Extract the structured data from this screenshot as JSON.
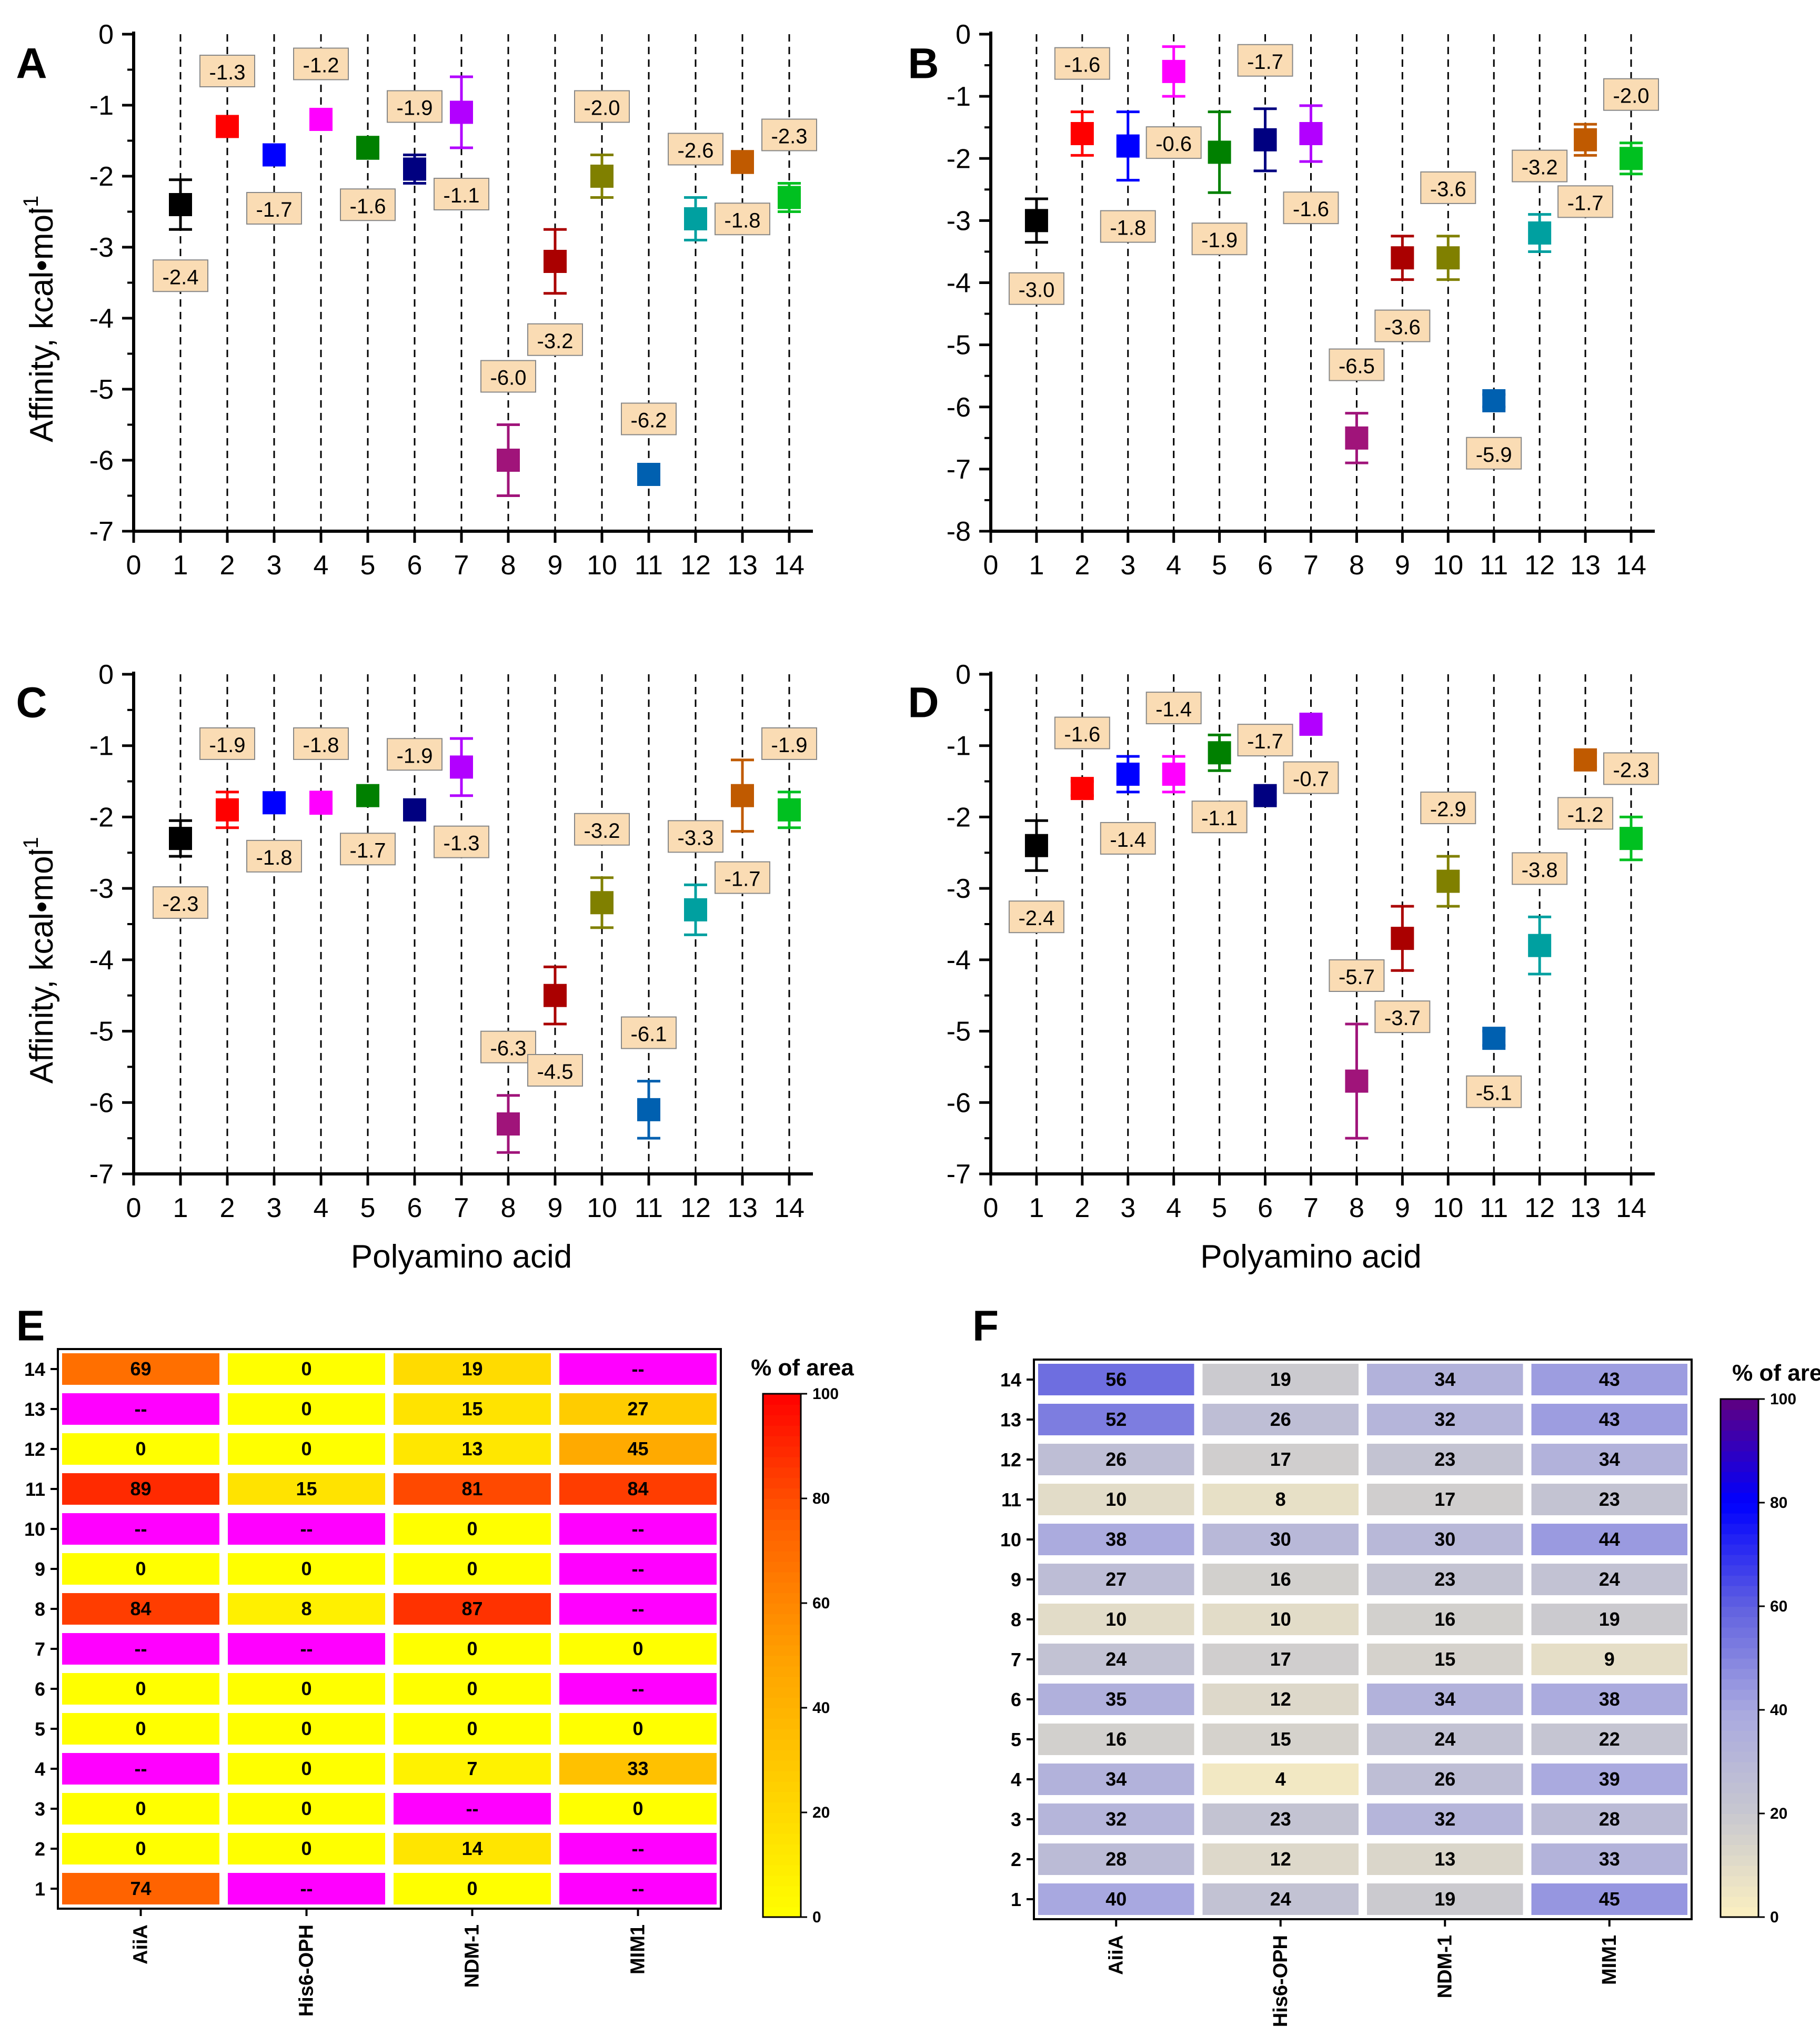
{
  "categories": [
    "1",
    "2",
    "3",
    "4",
    "5",
    "6",
    "7",
    "8",
    "9",
    "10",
    "11",
    "12",
    "13",
    "14"
  ],
  "x_ticks": [
    "0",
    "1",
    "2",
    "3",
    "4",
    "5",
    "6",
    "7",
    "8",
    "9",
    "10",
    "11",
    "12",
    "13",
    "14"
  ],
  "ylabel": "Affinity, kcal•mol",
  "ylabel_sup": "-1",
  "xlabel": "Polyamino acid",
  "colors": {
    "points": [
      "#000000",
      "#ff0000",
      "#0000ff",
      "#ff00ff",
      "#008000",
      "#000080",
      "#b200ff",
      "#a0147a",
      "#aa0000",
      "#808000",
      "#0060b0",
      "#00a0a0",
      "#c05a00",
      "#00c020"
    ],
    "label_fill": "#fadcb4",
    "heat_magenta": "#ff00ff",
    "orange_scale": [
      "#ffff00",
      "#ffd000",
      "#ffa000",
      "#ff6000",
      "#ff0000"
    ],
    "blue_scale": [
      "#fcf0c0",
      "#c8c8d0",
      "#a8a8e0",
      "#6060e0",
      "#0000ff",
      "#600080"
    ]
  },
  "chart_data": [
    {
      "panel": "A",
      "type": "scatter",
      "title": "A",
      "ylim": [
        -7,
        0
      ],
      "yticks": [
        "0",
        "-1",
        "-2",
        "-3",
        "-4",
        "-5",
        "-6",
        "-7"
      ],
      "values": [
        -2.4,
        -1.3,
        -1.7,
        -1.2,
        -1.6,
        -1.9,
        -1.1,
        -6.0,
        -3.2,
        -2.0,
        -6.2,
        -2.6,
        -1.8,
        -2.3
      ],
      "labels": [
        "-2.4",
        "-1.3",
        "-1.7",
        "-1.2",
        "-1.6",
        "-1.9",
        "-1.1",
        "-6.0",
        "-3.2",
        "-2.0",
        "-6.2",
        "-2.6",
        "-1.8",
        "-2.3"
      ],
      "errors": [
        0.35,
        0.1,
        0.1,
        0.1,
        0.15,
        0.2,
        0.5,
        0.5,
        0.45,
        0.3,
        0.1,
        0.3,
        0.15,
        0.2
      ]
    },
    {
      "panel": "B",
      "type": "scatter",
      "title": "B",
      "ylim": [
        -8,
        0
      ],
      "yticks": [
        "0",
        "-1",
        "-2",
        "-3",
        "-4",
        "-5",
        "-6",
        "-7",
        "-8"
      ],
      "values": [
        -3.0,
        -1.6,
        -1.8,
        -0.6,
        -1.9,
        -1.7,
        -1.6,
        -6.5,
        -3.6,
        -3.6,
        -5.9,
        -3.2,
        -1.7,
        -2.0
      ],
      "labels": [
        "-3.0",
        "-1.6",
        "-1.8",
        "-0.6",
        "-1.9",
        "-1.7",
        "-1.6",
        "-6.5",
        "-3.6",
        "-3.6",
        "-5.9",
        "-3.2",
        "-1.7",
        "-2.0"
      ],
      "errors": [
        0.35,
        0.35,
        0.55,
        0.4,
        0.65,
        0.5,
        0.45,
        0.4,
        0.35,
        0.35,
        0.1,
        0.3,
        0.25,
        0.25
      ]
    },
    {
      "panel": "C",
      "type": "scatter",
      "title": "C",
      "ylim": [
        -7,
        0
      ],
      "yticks": [
        "0",
        "-1",
        "-2",
        "-3",
        "-4",
        "-5",
        "-6",
        "-7"
      ],
      "values": [
        -2.3,
        -1.9,
        -1.8,
        -1.8,
        -1.7,
        -1.9,
        -1.3,
        -6.3,
        -4.5,
        -3.2,
        -6.1,
        -3.3,
        -1.7,
        -1.9
      ],
      "labels": [
        "-2.3",
        "-1.9",
        "-1.8",
        "-1.8",
        "-1.7",
        "-1.9",
        "-1.3",
        "-6.3",
        "-4.5",
        "-3.2",
        "-6.1",
        "-3.3",
        "-1.7",
        "-1.9"
      ],
      "errors": [
        0.25,
        0.25,
        0.1,
        0.15,
        0.1,
        0.1,
        0.4,
        0.4,
        0.4,
        0.35,
        0.4,
        0.35,
        0.5,
        0.25
      ]
    },
    {
      "panel": "D",
      "type": "scatter",
      "title": "D",
      "ylim": [
        -7,
        0
      ],
      "yticks": [
        "0",
        "-1",
        "-2",
        "-3",
        "-4",
        "-5",
        "-6",
        "-7"
      ],
      "values": [
        -2.4,
        -1.6,
        -1.4,
        -1.4,
        -1.1,
        -1.7,
        -0.7,
        -5.7,
        -3.7,
        -2.9,
        -5.1,
        -3.8,
        -1.2,
        -2.3
      ],
      "labels": [
        "-2.4",
        "-1.6",
        "-1.4",
        "-1.4",
        "-1.1",
        "-1.7",
        "-0.7",
        "-5.7",
        "-3.7",
        "-2.9",
        "-5.1",
        "-3.8",
        "-1.2",
        "-2.3"
      ],
      "errors": [
        0.35,
        0.1,
        0.25,
        0.25,
        0.25,
        0.1,
        0.1,
        0.8,
        0.45,
        0.35,
        0.1,
        0.4,
        0.1,
        0.3
      ]
    },
    {
      "panel": "E",
      "type": "heatmap",
      "title": "E",
      "rows": [
        "14",
        "13",
        "12",
        "11",
        "10",
        "9",
        "8",
        "7",
        "6",
        "5",
        "4",
        "3",
        "2",
        "1"
      ],
      "columns": [
        "AiiA",
        "His6-OPH",
        "NDM-1",
        "MIM1"
      ],
      "cells": [
        [
          "69",
          "0",
          "19",
          "--"
        ],
        [
          "--",
          "0",
          "15",
          "27"
        ],
        [
          "0",
          "0",
          "13",
          "45"
        ],
        [
          "89",
          "15",
          "81",
          "84"
        ],
        [
          "--",
          "--",
          "0",
          "--"
        ],
        [
          "0",
          "0",
          "0",
          "--"
        ],
        [
          "84",
          "8",
          "87",
          "--"
        ],
        [
          "--",
          "--",
          "0",
          "0"
        ],
        [
          "0",
          "0",
          "0",
          "--"
        ],
        [
          "0",
          "0",
          "0",
          "0"
        ],
        [
          "--",
          "0",
          "7",
          "33"
        ],
        [
          "0",
          "0",
          "--",
          "0"
        ],
        [
          "0",
          "0",
          "14",
          "--"
        ],
        [
          "74",
          "--",
          "0",
          "--"
        ]
      ],
      "colorbar_title": "% of area",
      "colorbar_ticks": [
        "0",
        "20",
        "40",
        "60",
        "80",
        "100"
      ],
      "zlim": [
        0,
        100
      ]
    },
    {
      "panel": "F",
      "type": "heatmap",
      "title": "F",
      "rows": [
        "14",
        "13",
        "12",
        "11",
        "10",
        "9",
        "8",
        "7",
        "6",
        "5",
        "4",
        "3",
        "2",
        "1"
      ],
      "columns": [
        "AiiA",
        "His6-OPH",
        "NDM-1",
        "MIM1"
      ],
      "cells": [
        [
          "56",
          "19",
          "34",
          "43"
        ],
        [
          "52",
          "26",
          "32",
          "43"
        ],
        [
          "26",
          "17",
          "23",
          "34"
        ],
        [
          "10",
          "8",
          "17",
          "23"
        ],
        [
          "38",
          "30",
          "30",
          "44"
        ],
        [
          "27",
          "16",
          "23",
          "24"
        ],
        [
          "10",
          "10",
          "16",
          "19"
        ],
        [
          "24",
          "17",
          "15",
          "9"
        ],
        [
          "35",
          "12",
          "34",
          "38"
        ],
        [
          "16",
          "15",
          "24",
          "22"
        ],
        [
          "34",
          "4",
          "26",
          "39"
        ],
        [
          "32",
          "23",
          "32",
          "28"
        ],
        [
          "28",
          "12",
          "13",
          "33"
        ],
        [
          "40",
          "24",
          "19",
          "45"
        ]
      ],
      "colorbar_title": "% of area",
      "colorbar_ticks": [
        "0",
        "20",
        "40",
        "60",
        "80",
        "100"
      ],
      "zlim": [
        0,
        100
      ]
    }
  ]
}
